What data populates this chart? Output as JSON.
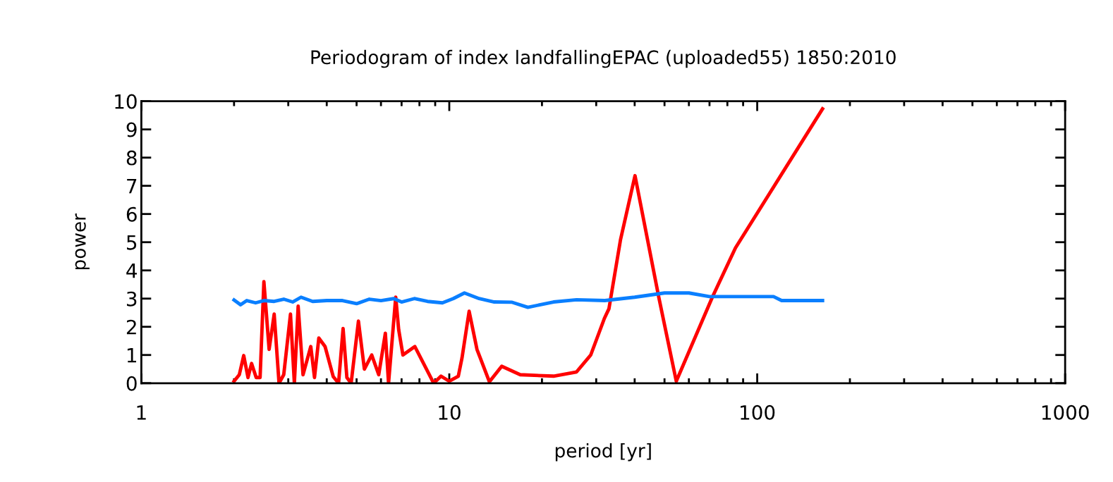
{
  "chart_data": {
    "type": "line",
    "title": "Periodogram of index landfallingEPAC (uploaded55) 1850:2010",
    "xlabel": "period [yr]",
    "ylabel": "power",
    "log": "x",
    "xlim": [
      1,
      1000
    ],
    "xticks": [
      1,
      10,
      100,
      1000
    ],
    "ylim": [
      0,
      10
    ],
    "yticks": [
      0,
      1,
      2,
      3,
      4,
      5,
      6,
      7,
      8,
      9,
      10
    ],
    "marker": "none",
    "line_style": "solid",
    "series": [
      {
        "color": "#ff0000",
        "x": [
          2.0,
          2.08,
          2.15,
          2.22,
          2.28,
          2.36,
          2.43,
          2.5,
          2.6,
          2.7,
          2.8,
          2.9,
          3.05,
          3.14,
          3.23,
          3.35,
          3.55,
          3.65,
          3.77,
          3.95,
          4.2,
          4.37,
          4.52,
          4.65,
          4.8,
          5.07,
          5.3,
          5.6,
          5.9,
          6.2,
          6.35,
          6.7,
          6.85,
          7.07,
          7.73,
          8.9,
          9.4,
          10.0,
          10.7,
          11.0,
          11.6,
          12.3,
          13.5,
          14.8,
          17.0,
          21.8,
          25.9,
          28.8,
          31.9,
          33.0,
          36.0,
          40.1,
          47.9,
          54.6,
          71.5,
          85.0,
          163.0
        ],
        "values": [
          0.07,
          0.3,
          0.98,
          0.2,
          0.7,
          0.2,
          0.2,
          3.6,
          1.2,
          2.45,
          0.0,
          0.3,
          2.45,
          0.0,
          2.73,
          0.3,
          1.3,
          0.2,
          1.6,
          1.3,
          0.23,
          0.0,
          1.94,
          0.2,
          0.0,
          2.2,
          0.5,
          1.0,
          0.3,
          1.77,
          0.0,
          3.05,
          1.9,
          1.0,
          1.3,
          0.0,
          0.25,
          0.07,
          0.25,
          0.9,
          2.55,
          1.2,
          0.05,
          0.6,
          0.3,
          0.25,
          0.4,
          1.0,
          2.3,
          2.64,
          5.1,
          7.36,
          3.05,
          0.07,
          3.05,
          4.8,
          9.73
        ]
      },
      {
        "color": "#0a7fff",
        "x": [
          2.0,
          2.1,
          2.2,
          2.35,
          2.5,
          2.7,
          2.9,
          3.1,
          3.3,
          3.6,
          4.0,
          4.5,
          5.0,
          5.5,
          6.0,
          6.6,
          7.0,
          7.7,
          8.5,
          9.5,
          10.3,
          11.2,
          12.5,
          14.0,
          16.0,
          18.0,
          21.8,
          25.9,
          32.0,
          40.0,
          50.0,
          60.0,
          70.0,
          113.0,
          120.0,
          163.0
        ],
        "values": [
          2.95,
          2.78,
          2.93,
          2.85,
          2.93,
          2.9,
          2.98,
          2.88,
          3.05,
          2.9,
          2.93,
          2.93,
          2.82,
          2.98,
          2.93,
          3.0,
          2.88,
          3.0,
          2.9,
          2.85,
          3.0,
          3.2,
          3.0,
          2.88,
          2.87,
          2.69,
          2.88,
          2.96,
          2.93,
          3.05,
          3.2,
          3.2,
          3.07,
          3.07,
          2.93,
          2.93
        ]
      }
    ]
  }
}
